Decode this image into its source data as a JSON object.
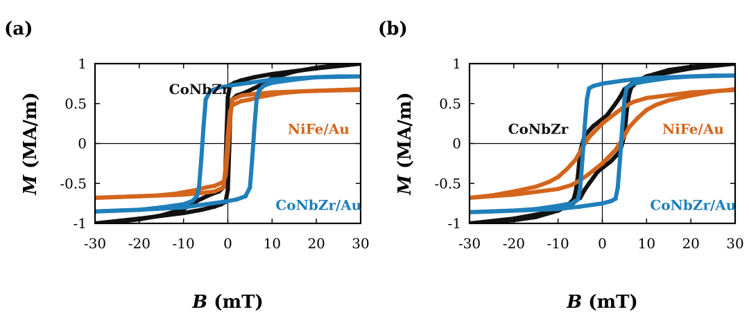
{
  "chart_data": [
    {
      "type": "line",
      "panel_label": "(a)",
      "title": "",
      "xlabel_symbol": "B",
      "xlabel_unit": " (mT)",
      "ylabel_symbol": "M",
      "ylabel_unit": " (MA/m)",
      "xlim": [
        -30,
        30
      ],
      "ylim": [
        -1,
        1
      ],
      "xticks": [
        -30,
        -20,
        -10,
        0,
        10,
        20,
        30
      ],
      "xtick_labels": [
        "-30",
        "-20",
        "-10",
        "0",
        "10",
        "20",
        "30"
      ],
      "yticks": [
        -1,
        -0.5,
        0,
        0.5,
        1
      ],
      "ytick_labels": [
        "-1",
        "-0.5",
        "0",
        "0.5",
        "1"
      ],
      "grid": false,
      "zero_lines": true,
      "series": [
        {
          "name": "CoNbZr",
          "color": "#111111",
          "branches": [
            {
              "x": [
                30,
                20,
                10,
                6,
                3,
                1.5,
                0.5,
                0,
                -0.3,
                -0.6,
                -1,
                -2,
                -4,
                -7,
                -10,
                -15,
                -20,
                -25,
                -30
              ],
              "y": [
                1.0,
                0.94,
                0.87,
                0.83,
                0.79,
                0.76,
                0.73,
                0.58,
                0.1,
                -0.4,
                -0.55,
                -0.6,
                -0.64,
                -0.72,
                -0.82,
                -0.9,
                -0.95,
                -0.98,
                -1.0
              ]
            },
            {
              "x": [
                -30,
                -20,
                -10,
                -6,
                -3,
                -1.5,
                -0.5,
                0,
                0.3,
                0.6,
                1,
                2,
                4,
                7,
                10,
                15,
                20,
                25,
                30
              ],
              "y": [
                -1.0,
                -0.94,
                -0.87,
                -0.83,
                -0.79,
                -0.76,
                -0.73,
                -0.58,
                -0.1,
                0.4,
                0.55,
                0.6,
                0.64,
                0.72,
                0.82,
                0.9,
                0.95,
                0.98,
                1.0
              ]
            }
          ]
        },
        {
          "name": "NiFe/Au",
          "color": "#d3651c",
          "branches": [
            {
              "x": [
                30,
                20,
                10,
                6,
                3,
                1,
                0.5,
                0,
                -0.5,
                -1,
                -3,
                -5,
                -7,
                -9,
                -12,
                -16,
                -20,
                -25,
                -30
              ],
              "y": [
                0.67,
                0.66,
                0.64,
                0.62,
                0.6,
                0.55,
                0.3,
                -0.1,
                -0.4,
                -0.48,
                -0.53,
                -0.55,
                -0.58,
                -0.6,
                -0.63,
                -0.65,
                -0.66,
                -0.67,
                -0.68
              ]
            },
            {
              "x": [
                -30,
                -20,
                -10,
                -6,
                -3,
                -1,
                -0.5,
                0,
                0.5,
                1,
                3,
                5,
                7,
                9,
                12,
                16,
                20,
                25,
                30
              ],
              "y": [
                -0.68,
                -0.66,
                -0.64,
                -0.62,
                -0.6,
                -0.55,
                -0.3,
                0.1,
                0.4,
                0.48,
                0.53,
                0.55,
                0.58,
                0.6,
                0.63,
                0.65,
                0.66,
                0.67,
                0.68
              ]
            }
          ]
        },
        {
          "name": "CoNbZr/Au",
          "color": "#1f7fba",
          "branches": [
            {
              "x": [
                30,
                20,
                10,
                5,
                1,
                -2,
                -4,
                -5,
                -5.5,
                -6,
                -6.5,
                -7,
                -8,
                -10,
                -15,
                -20,
                -25,
                -30
              ],
              "y": [
                0.84,
                0.83,
                0.8,
                0.76,
                0.73,
                0.7,
                0.66,
                0.55,
                0.2,
                -0.2,
                -0.55,
                -0.66,
                -0.72,
                -0.76,
                -0.8,
                -0.83,
                -0.84,
                -0.85
              ]
            },
            {
              "x": [
                -30,
                -20,
                -10,
                -5,
                -1,
                2,
                4,
                5,
                5.5,
                6,
                6.5,
                7,
                8,
                10,
                15,
                20,
                25,
                30
              ],
              "y": [
                -0.85,
                -0.83,
                -0.8,
                -0.76,
                -0.73,
                -0.7,
                -0.66,
                -0.55,
                -0.2,
                0.2,
                0.55,
                0.66,
                0.72,
                0.76,
                0.8,
                0.83,
                0.84,
                0.84
              ]
            }
          ]
        }
      ],
      "annotations": [
        {
          "text": "CoNbZr",
          "color": "#111111",
          "x": -6.5,
          "y": 0.68
        },
        {
          "text": "NiFe/Au",
          "color": "#d3651c",
          "x": 20.5,
          "y": 0.18
        },
        {
          "text": "CoNbZr/Au",
          "color": "#1f7fba",
          "x": 20.5,
          "y": -0.77
        }
      ]
    },
    {
      "type": "line",
      "panel_label": "(b)",
      "title": "",
      "xlabel_symbol": "B",
      "xlabel_unit": " (mT)",
      "ylabel_symbol": "M",
      "ylabel_unit": " (MA/m)",
      "xlim": [
        -30,
        30
      ],
      "ylim": [
        -1,
        1
      ],
      "xticks": [
        -30,
        -20,
        -10,
        0,
        10,
        20,
        30
      ],
      "xtick_labels": [
        "-30",
        "-20",
        "-10",
        "0",
        "10",
        "20",
        "30"
      ],
      "yticks": [
        -1,
        -0.5,
        0,
        0.5,
        1
      ],
      "ytick_labels": [
        "-1",
        "-0.5",
        "0",
        "0.5",
        "1"
      ],
      "grid": false,
      "zero_lines": true,
      "series": [
        {
          "name": "CoNbZr",
          "color": "#111111",
          "branches": [
            {
              "x": [
                30,
                20,
                10,
                7,
                5,
                4,
                3,
                1,
                -2,
                -4,
                -5,
                -5.5,
                -6,
                -6.5,
                -8,
                -10,
                -15,
                -20,
                -25,
                -30
              ],
              "y": [
                1.0,
                0.94,
                0.84,
                0.76,
                0.68,
                0.58,
                0.5,
                0.35,
                0.22,
                0.1,
                -0.1,
                -0.4,
                -0.6,
                -0.7,
                -0.78,
                -0.84,
                -0.92,
                -0.96,
                -0.98,
                -1.0
              ]
            },
            {
              "x": [
                -30,
                -20,
                -10,
                -7,
                -5,
                -4,
                -3,
                -1,
                2,
                4,
                5,
                5.5,
                6,
                6.5,
                8,
                10,
                15,
                20,
                25,
                30
              ],
              "y": [
                -1.0,
                -0.94,
                -0.84,
                -0.76,
                -0.68,
                -0.58,
                -0.5,
                -0.35,
                -0.22,
                -0.1,
                0.1,
                0.4,
                0.6,
                0.7,
                0.78,
                0.84,
                0.92,
                0.96,
                0.98,
                1.0
              ]
            }
          ]
        },
        {
          "name": "NiFe/Au",
          "color": "#d3651c",
          "branches": [
            {
              "x": [
                30,
                20,
                10,
                7,
                5,
                3,
                0,
                -3,
                -4.5,
                -6,
                -8,
                -10,
                -12,
                -15,
                -20,
                -25,
                -30
              ],
              "y": [
                0.67,
                0.64,
                0.57,
                0.52,
                0.46,
                0.38,
                0.25,
                0.08,
                -0.05,
                -0.2,
                -0.32,
                -0.42,
                -0.48,
                -0.54,
                -0.6,
                -0.65,
                -0.68
              ]
            },
            {
              "x": [
                -30,
                -20,
                -10,
                -7,
                -5,
                -3,
                0,
                3,
                4.5,
                6,
                8,
                10,
                12,
                15,
                20,
                25,
                30
              ],
              "y": [
                -0.68,
                -0.64,
                -0.57,
                -0.52,
                -0.46,
                -0.38,
                -0.25,
                -0.08,
                0.05,
                0.2,
                0.32,
                0.42,
                0.48,
                0.54,
                0.6,
                0.65,
                0.68
              ]
            }
          ]
        },
        {
          "name": "CoNbZr/Au",
          "color": "#1f7fba",
          "branches": [
            {
              "x": [
                30,
                20,
                10,
                5,
                0,
                -2,
                -3,
                -3.5,
                -4,
                -4.5,
                -5,
                -5.5,
                -7,
                -10,
                -15,
                -20,
                -25,
                -30
              ],
              "y": [
                0.85,
                0.84,
                0.82,
                0.79,
                0.75,
                0.72,
                0.69,
                0.55,
                0.2,
                -0.2,
                -0.55,
                -0.7,
                -0.75,
                -0.78,
                -0.82,
                -0.84,
                -0.85,
                -0.86
              ]
            },
            {
              "x": [
                -30,
                -20,
                -10,
                -5,
                0,
                2,
                3,
                3.5,
                4,
                4.5,
                5,
                5.5,
                7,
                10,
                15,
                20,
                25,
                30
              ],
              "y": [
                -0.86,
                -0.84,
                -0.82,
                -0.79,
                -0.75,
                -0.72,
                -0.69,
                -0.55,
                -0.2,
                0.2,
                0.55,
                0.7,
                0.75,
                0.78,
                0.82,
                0.84,
                0.85,
                0.85
              ]
            }
          ]
        }
      ],
      "annotations": [
        {
          "text": "CoNbZr",
          "color": "#111111",
          "x": -14.5,
          "y": 0.18
        },
        {
          "text": "NiFe/Au",
          "color": "#d3651c",
          "x": 20.5,
          "y": 0.18
        },
        {
          "text": "CoNbZr/Au",
          "color": "#1f7fba",
          "x": 20.5,
          "y": -0.77
        }
      ]
    }
  ]
}
